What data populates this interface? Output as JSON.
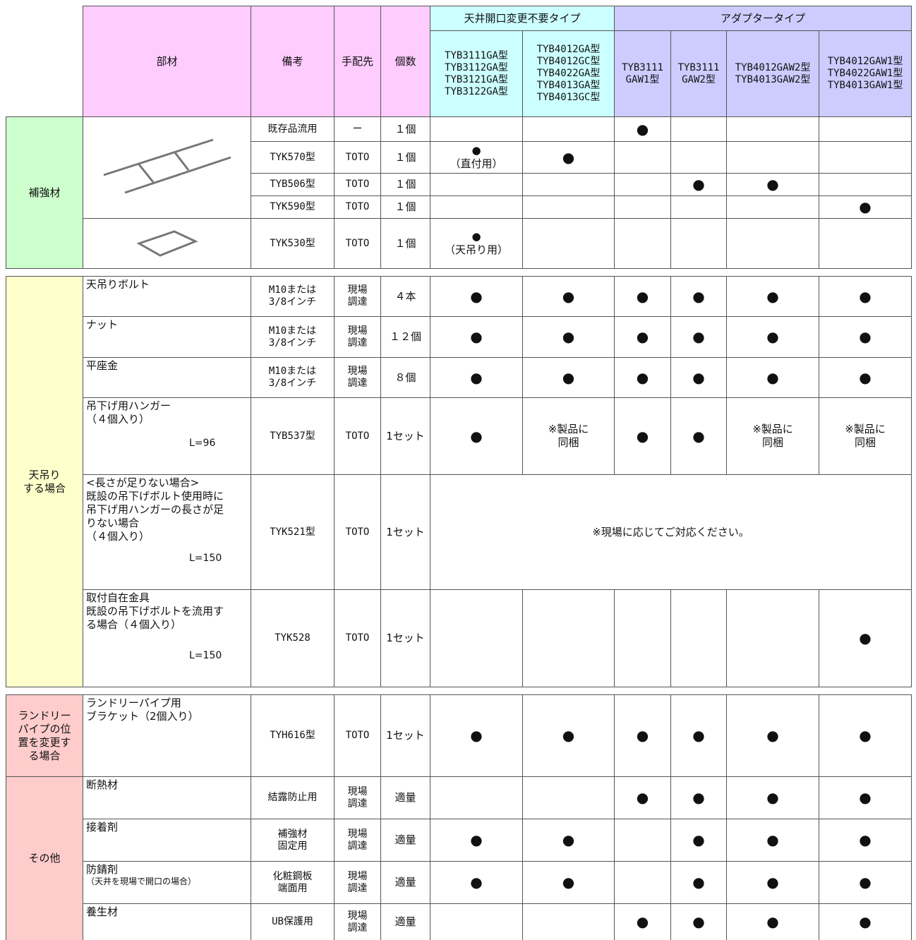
{
  "header": {
    "part": "部材",
    "note": "備考",
    "supplier": "手配先",
    "qty": "個数",
    "groups": [
      {
        "title": "天井開口変更不要タイプ",
        "models": [
          "TYB3111GA型\nTYB3112GA型\nTYB3121GA型\nTYB3122GA型",
          "TYB4012GA型\nTYB4012GC型\nTYB4022GA型\nTYB4013GA型\nTYB4013GC型"
        ]
      },
      {
        "title": "アダプタータイプ",
        "models": [
          "TYB3111\nGAW1型",
          "TYB3111\nGAW2型",
          "TYB4012GAW2型\nTYB4013GAW2型",
          "TYB4012GAW1型\nTYB4022GAW1型\nTYB4013GAW1型"
        ]
      }
    ]
  },
  "sections": [
    {
      "label": "補強材",
      "rows": [
        {
          "note": "既存品流用",
          "supplier": "ー",
          "qty": "１個",
          "marks": [
            null,
            null,
            "●",
            null,
            null,
            null
          ]
        },
        {
          "note": "TYK570型",
          "supplier": "TOTO",
          "qty": "１個",
          "marks": [
            "●\n（直付用）",
            "●",
            null,
            null,
            null,
            null
          ]
        },
        {
          "note": "TYB506型",
          "supplier": "TOTO",
          "qty": "１個",
          "marks": [
            null,
            null,
            null,
            "●",
            "●",
            null
          ]
        },
        {
          "note": "TYK590型",
          "supplier": "TOTO",
          "qty": "１個",
          "marks": [
            null,
            null,
            null,
            null,
            null,
            "●"
          ]
        },
        {
          "note": "TYK530型",
          "supplier": "TOTO",
          "qty": "１個",
          "marks": [
            "●\n（天吊り用）",
            null,
            null,
            null,
            null,
            null
          ]
        }
      ]
    },
    {
      "label": "天吊り\nする場合",
      "rows": [
        {
          "part": "天吊りボルト",
          "note": "M10または\n3/8インチ",
          "supplier": "現場\n調達",
          "qty": "４本",
          "marks": [
            "●",
            "●",
            "●",
            "●",
            "●",
            "●"
          ]
        },
        {
          "part": "ナット",
          "note": "M10または\n3/8インチ",
          "supplier": "現場\n調達",
          "qty": "１２個",
          "marks": [
            "●",
            "●",
            "●",
            "●",
            "●",
            "●"
          ]
        },
        {
          "part": "平座金",
          "note": "M10または\n3/8インチ",
          "supplier": "現場\n調達",
          "qty": "８個",
          "marks": [
            "●",
            "●",
            "●",
            "●",
            "●",
            "●"
          ]
        },
        {
          "part": "吊下げ用ハンガー\n（４個入り）",
          "size": "L=96",
          "note": "TYB537型",
          "supplier": "TOTO",
          "qty": "1セット",
          "marks": [
            "●",
            "※製品に\n同梱",
            "●",
            "●",
            "※製品に\n同梱",
            "※製品に\n同梱"
          ]
        },
        {
          "part": "<長さが足りない場合>\n既設の吊下げボルト使用時に\n吊下げ用ハンガーの長さが足\nりない場合\n（４個入り）",
          "size": "L=150",
          "note": "TYK521型",
          "supplier": "TOTO",
          "qty": "1セット",
          "merged": "※現場に応じてご対応ください。"
        },
        {
          "part": "取付自在金具\n既設の吊下げボルトを流用す\nる場合（４個入り）",
          "size": "L=150",
          "note": "TYK528",
          "supplier": "TOTO",
          "qty": "1セット",
          "marks": [
            null,
            null,
            null,
            null,
            null,
            "●"
          ]
        }
      ]
    },
    {
      "label": "ランドリー\nパイプの位\n置を変更す\nる場合",
      "rows": [
        {
          "part": "ランドリーパイプ用\nブラケット（2個入り）",
          "note": "TYH616型",
          "supplier": "TOTO",
          "qty": "1セット",
          "marks": [
            "●",
            "●",
            "●",
            "●",
            "●",
            "●"
          ]
        }
      ]
    },
    {
      "label": "その他",
      "rows": [
        {
          "part": "断熱材",
          "note": "結露防止用",
          "supplier": "現場\n調達",
          "qty": "適量",
          "marks": [
            null,
            null,
            "●",
            "●",
            "●",
            "●"
          ]
        },
        {
          "part": "接着剤",
          "note": "補強材\n固定用",
          "supplier": "現場\n調達",
          "qty": "適量",
          "marks": [
            "●",
            "●",
            null,
            "●",
            "●",
            "●"
          ]
        },
        {
          "part": "防錆剤",
          "part_sub": "（天井を現場で開口の場合）",
          "note": "化粧鋼板\n端面用",
          "supplier": "現場\n調達",
          "qty": "適量",
          "marks": [
            "●",
            "●",
            null,
            "●",
            "●",
            "●"
          ]
        },
        {
          "part": "養生材",
          "note": "UB保護用",
          "supplier": "現場\n調達",
          "qty": "適量",
          "marks": [
            null,
            null,
            "●",
            "●",
            "●",
            "●"
          ]
        }
      ]
    }
  ]
}
